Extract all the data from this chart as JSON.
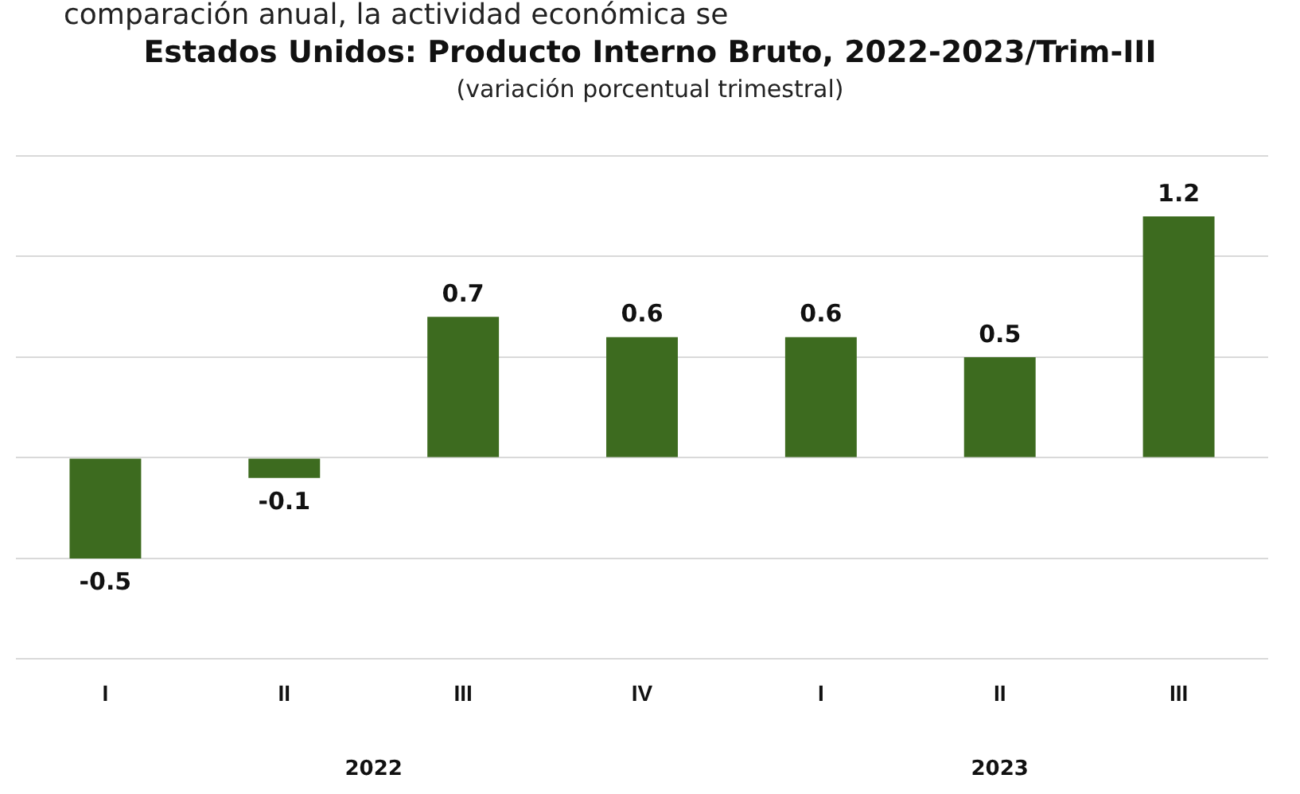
{
  "chart_data": {
    "type": "bar",
    "title": "Estados Unidos: Producto Interno Bruto, 2022-2023/Trim-III",
    "subtitle": "(variación porcentual trimestral)",
    "annotations": [
      "comparación anual, la actividad económica se",
      "2022",
      "2023"
    ],
    "categories": [
      "I",
      "II",
      "III",
      "IV",
      "I",
      "II",
      "III"
    ],
    "values": [
      -0.5,
      -0.1,
      0.7,
      0.6,
      0.6,
      0.5,
      1.2
    ],
    "color": "#3d6b1f",
    "data_labels": true,
    "ylim": [
      -1,
      1.5
    ],
    "yticks": [
      {
        "value": -1,
        "label": null
      },
      {
        "value": -0.5,
        "label": null
      },
      {
        "value": 0,
        "label": null
      },
      {
        "value": 0.5,
        "label": null
      },
      {
        "value": 1,
        "label": null
      },
      {
        "value": 1.5,
        "label": null
      }
    ],
    "grid": "y",
    "tick_labels": "x"
  }
}
